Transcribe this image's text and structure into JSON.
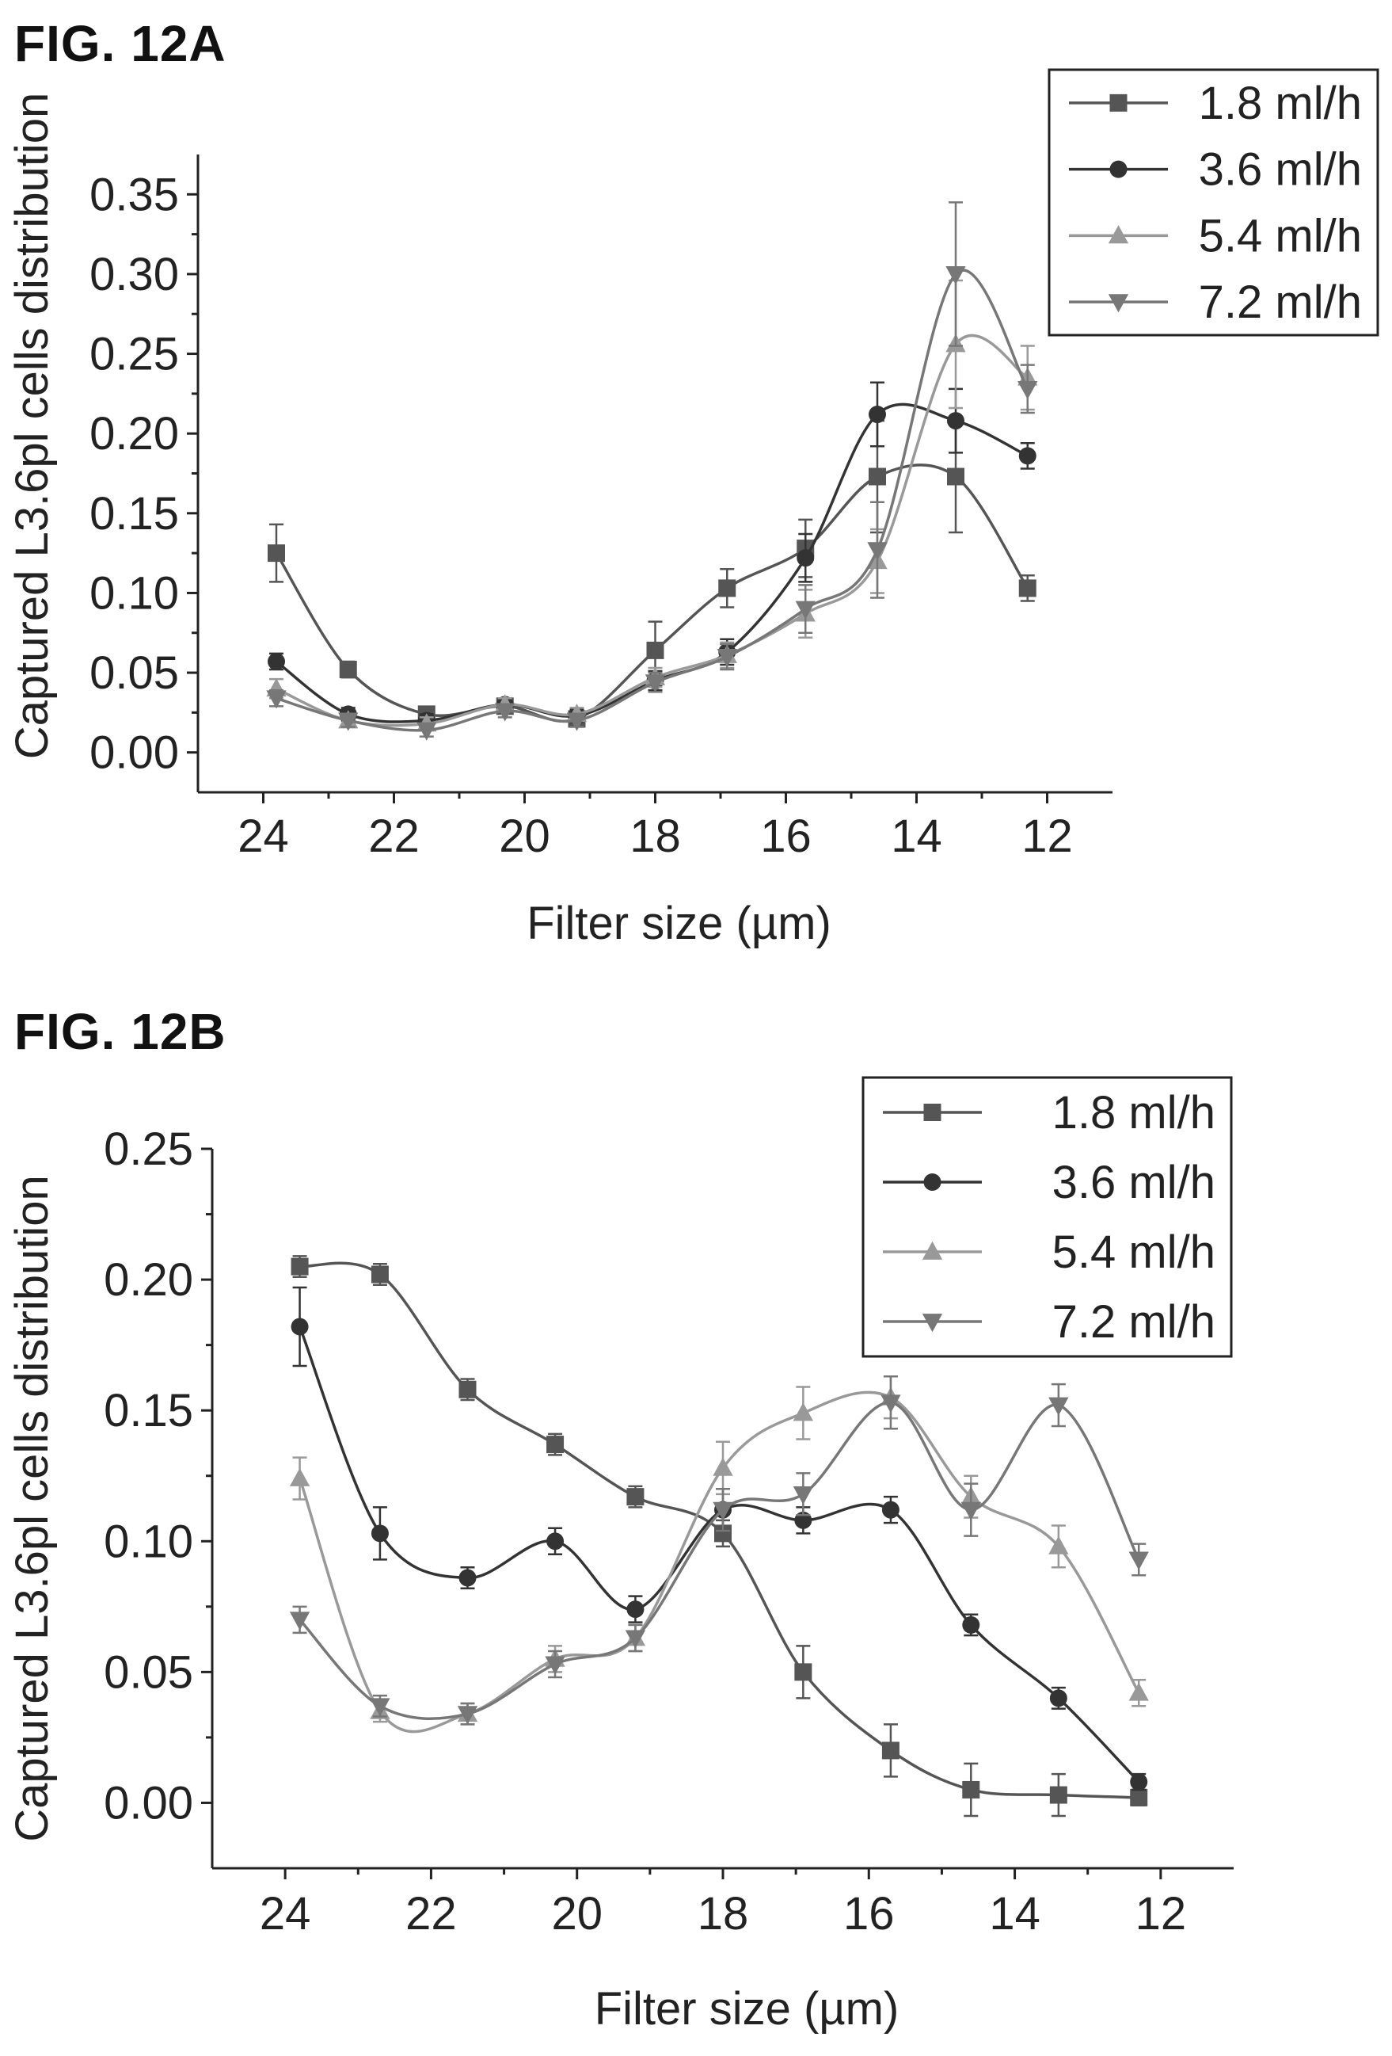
{
  "figures": [
    {
      "id": "fig-12a",
      "label": "FIG. 12A"
    },
    {
      "id": "fig-12b",
      "label": "FIG. 12B"
    }
  ],
  "chart_data": [
    {
      "type": "line",
      "figure_label": "FIG. 12A",
      "xlabel": "Filter size (µm)",
      "ylabel": "Captured L3.6pl cells distribution",
      "xlim": [
        25,
        11
      ],
      "ylim": [
        -0.025,
        0.375
      ],
      "x_ticks": [
        "24",
        "22",
        "20",
        "18",
        "16",
        "14",
        "12"
      ],
      "y_ticks": [
        "0.00",
        "0.05",
        "0.10",
        "0.15",
        "0.20",
        "0.25",
        "0.30",
        "0.35"
      ],
      "legend_position": "top-right",
      "x": [
        23.8,
        22.7,
        21.5,
        20.3,
        19.2,
        18,
        16.9,
        15.7,
        14.6,
        13.4,
        12.3
      ],
      "series": [
        {
          "name": "1.8 ml/h",
          "color": "#555555",
          "marker": "square",
          "values": [
            0.125,
            0.052,
            0.024,
            0.029,
            0.021,
            0.064,
            0.103,
            0.128,
            0.173,
            0.173,
            0.103
          ],
          "errors": [
            0.018,
            0.005,
            0.004,
            0.004,
            0.004,
            0.018,
            0.012,
            0.018,
            0.035,
            0.035,
            0.008
          ]
        },
        {
          "name": "3.6 ml/h",
          "color": "#333333",
          "marker": "circle",
          "values": [
            0.057,
            0.024,
            0.02,
            0.03,
            0.023,
            0.045,
            0.063,
            0.122,
            0.212,
            0.208,
            0.186
          ],
          "errors": [
            0.005,
            0.004,
            0.004,
            0.004,
            0.004,
            0.006,
            0.008,
            0.015,
            0.02,
            0.02,
            0.008
          ]
        },
        {
          "name": "5.4 ml/h",
          "color": "#999999",
          "marker": "triangle",
          "values": [
            0.04,
            0.02,
            0.018,
            0.03,
            0.024,
            0.047,
            0.061,
            0.087,
            0.12,
            0.256,
            0.235
          ],
          "errors": [
            0.006,
            0.004,
            0.004,
            0.004,
            0.004,
            0.006,
            0.008,
            0.015,
            0.02,
            0.04,
            0.02
          ]
        },
        {
          "name": "7.2 ml/h",
          "color": "#777777",
          "marker": "down-triangle",
          "values": [
            0.034,
            0.02,
            0.014,
            0.026,
            0.02,
            0.044,
            0.06,
            0.09,
            0.127,
            0.3,
            0.228
          ],
          "errors": [
            0.005,
            0.004,
            0.004,
            0.004,
            0.004,
            0.006,
            0.008,
            0.015,
            0.03,
            0.045,
            0.015
          ]
        }
      ]
    },
    {
      "type": "line",
      "figure_label": "FIG. 12B",
      "xlabel": "Filter size (µm)",
      "ylabel": "Captured L3.6pl cells distribution",
      "xlim": [
        25,
        11
      ],
      "ylim": [
        -0.025,
        0.25
      ],
      "x_ticks": [
        "24",
        "22",
        "20",
        "18",
        "16",
        "14",
        "12"
      ],
      "y_ticks": [
        "0.00",
        "0.05",
        "0.10",
        "0.15",
        "0.20",
        "0.25"
      ],
      "legend_position": "top-right",
      "x": [
        23.8,
        22.7,
        21.5,
        20.3,
        19.2,
        18,
        16.9,
        15.7,
        14.6,
        13.4,
        12.3
      ],
      "series": [
        {
          "name": "1.8 ml/h",
          "color": "#555555",
          "marker": "square",
          "values": [
            0.205,
            0.202,
            0.158,
            0.137,
            0.117,
            0.103,
            0.05,
            0.02,
            0.005,
            0.003,
            0.002
          ],
          "errors": [
            0.004,
            0.004,
            0.004,
            0.004,
            0.004,
            0.005,
            0.01,
            0.01,
            0.01,
            0.008,
            0.003
          ]
        },
        {
          "name": "3.6 ml/h",
          "color": "#333333",
          "marker": "circle",
          "values": [
            0.182,
            0.103,
            0.086,
            0.1,
            0.074,
            0.112,
            0.108,
            0.112,
            0.068,
            0.04,
            0.008
          ],
          "errors": [
            0.015,
            0.01,
            0.004,
            0.005,
            0.005,
            0.008,
            0.005,
            0.005,
            0.004,
            0.004,
            0.003
          ]
        },
        {
          "name": "5.4 ml/h",
          "color": "#999999",
          "marker": "triangle",
          "values": [
            0.124,
            0.035,
            0.034,
            0.055,
            0.063,
            0.128,
            0.149,
            0.155,
            0.117,
            0.098,
            0.042
          ],
          "errors": [
            0.008,
            0.004,
            0.004,
            0.005,
            0.005,
            0.01,
            0.01,
            0.008,
            0.008,
            0.008,
            0.005
          ]
        },
        {
          "name": "7.2 ml/h",
          "color": "#777777",
          "marker": "down-triangle",
          "values": [
            0.07,
            0.037,
            0.034,
            0.053,
            0.063,
            0.112,
            0.118,
            0.153,
            0.112,
            0.152,
            0.093
          ],
          "errors": [
            0.005,
            0.004,
            0.004,
            0.005,
            0.005,
            0.008,
            0.008,
            0.01,
            0.01,
            0.008,
            0.006
          ]
        }
      ]
    }
  ]
}
